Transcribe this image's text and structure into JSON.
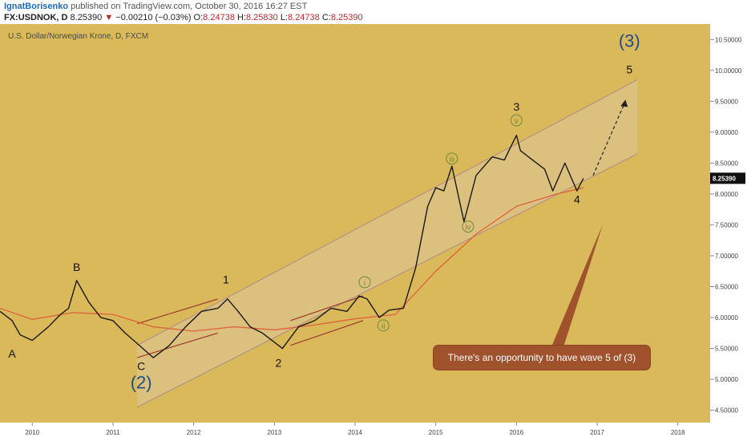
{
  "header": {
    "author": "IgnatBorisenko",
    "published": "published on TradingView.com, October 30, 2016 16:27 EST",
    "symbol": "FX:USDNOK, D",
    "last": "8.25390",
    "change": "−0.00210 (−0.03%)",
    "open_label": "O:",
    "open": "8.24738",
    "high_label": "H:",
    "high": "8.25830",
    "low_label": "L:",
    "low": "8.24738",
    "close_label": "C:",
    "close": "8.25390"
  },
  "colors": {
    "background": "#d9b95a",
    "price_line": "#1a1a1a",
    "moving_average": "#e0623a",
    "channel": "#b08a8a",
    "channel_fill": "#ddc99a",
    "wave_label": "#111111",
    "big_wave_label": "#1d4e89",
    "minor_wave_label": "#6e8b3d",
    "callout": "#a0522d",
    "current_price_tag": "#111111"
  },
  "callout_text": "There's an opportunity to have wave 5 of (3)",
  "chart_data": {
    "type": "line",
    "title": "U.S. Dollar/Norwegian Krone, D, FXCM",
    "xlabel": "",
    "ylabel": "",
    "x_ticks": [
      "2010",
      "2011",
      "2012",
      "2013",
      "2014",
      "2015",
      "2016",
      "2017",
      "2018"
    ],
    "y_ticks": [
      "4.50000",
      "5.00000",
      "5.50000",
      "6.00000",
      "6.50000",
      "7.00000",
      "7.50000",
      "8.00000",
      "8.50000",
      "9.00000",
      "9.50000",
      "10.00000",
      "10.50000"
    ],
    "xlim": [
      2009.6,
      2018.4
    ],
    "ylim": [
      4.3,
      10.75
    ],
    "grid": false,
    "current_price": "8.25390",
    "series": [
      {
        "type": "price",
        "x": [
          2009.6,
          2009.75,
          2009.85,
          2010.0,
          2010.2,
          2010.35,
          2010.45,
          2010.55,
          2010.7,
          2010.85,
          2011.0,
          2011.15,
          2011.3,
          2011.5,
          2011.7,
          2011.9,
          2012.1,
          2012.3,
          2012.42,
          2012.55,
          2012.7,
          2012.85,
          2013.0,
          2013.1,
          2013.3,
          2013.5,
          2013.7,
          2013.9,
          2014.05,
          2014.15,
          2014.3,
          2014.42,
          2014.6,
          2014.75,
          2014.9,
          2015.0,
          2015.1,
          2015.2,
          2015.35,
          2015.5,
          2015.7,
          2015.85,
          2016.0,
          2016.05,
          2016.2,
          2016.35,
          2016.45,
          2016.6,
          2016.75,
          2016.83
        ],
        "y": [
          6.1,
          5.95,
          5.72,
          5.63,
          5.85,
          6.05,
          6.15,
          6.6,
          6.25,
          6.0,
          5.95,
          5.75,
          5.58,
          5.35,
          5.55,
          5.85,
          6.1,
          6.15,
          6.3,
          6.1,
          5.85,
          5.75,
          5.6,
          5.5,
          5.85,
          5.95,
          6.15,
          6.1,
          6.35,
          6.3,
          6.0,
          6.12,
          6.15,
          6.8,
          7.8,
          8.1,
          8.05,
          8.45,
          7.55,
          8.3,
          8.6,
          8.55,
          8.95,
          8.7,
          8.55,
          8.4,
          8.05,
          8.5,
          8.05,
          8.254
        ]
      },
      {
        "type": "moving_average",
        "x": [
          2009.6,
          2010.0,
          2010.5,
          2011.0,
          2011.5,
          2012.0,
          2012.5,
          2013.0,
          2013.5,
          2014.0,
          2014.5,
          2015.0,
          2015.5,
          2016.0,
          2016.5,
          2016.83
        ],
        "y": [
          6.15,
          5.97,
          6.08,
          6.05,
          5.85,
          5.78,
          5.85,
          5.8,
          5.88,
          5.98,
          6.05,
          6.75,
          7.35,
          7.8,
          8.0,
          8.1
        ]
      }
    ],
    "channel": {
      "upper": [
        [
          2011.3,
          5.55
        ],
        [
          2017.5,
          9.85
        ]
      ],
      "lower": [
        [
          2011.3,
          4.55
        ],
        [
          2017.5,
          8.65
        ]
      ],
      "inner_upper": [
        [
          2011.3,
          5.35
        ],
        [
          2016.9,
          8.6
        ]
      ]
    },
    "sub_channels": [
      {
        "upper": [
          [
            2011.3,
            5.9
          ],
          [
            2012.3,
            6.3
          ]
        ],
        "lower": [
          [
            2011.3,
            5.35
          ],
          [
            2012.3,
            5.75
          ]
        ]
      },
      {
        "upper": [
          [
            2013.2,
            5.95
          ],
          [
            2014.1,
            6.35
          ]
        ],
        "lower": [
          [
            2013.2,
            5.55
          ],
          [
            2014.1,
            5.95
          ]
        ]
      }
    ],
    "projection": [
      [
        2016.95,
        8.3
      ],
      [
        2017.35,
        9.5
      ]
    ],
    "annotations": [
      {
        "text": "A",
        "x": 2009.75,
        "y": 5.35,
        "style": "major"
      },
      {
        "text": "B",
        "x": 2010.55,
        "y": 6.75,
        "style": "major"
      },
      {
        "text": "C",
        "x": 2011.35,
        "y": 5.15,
        "style": "major"
      },
      {
        "text": "(2)",
        "x": 2011.35,
        "y": 4.85,
        "style": "big"
      },
      {
        "text": "1",
        "x": 2012.4,
        "y": 6.55,
        "style": "major"
      },
      {
        "text": "2",
        "x": 2013.05,
        "y": 5.2,
        "style": "major"
      },
      {
        "text": "i",
        "x": 2014.12,
        "y": 6.52,
        "style": "minor"
      },
      {
        "text": "ii",
        "x": 2014.35,
        "y": 5.82,
        "style": "minor"
      },
      {
        "text": "iii",
        "x": 2015.2,
        "y": 8.52,
        "style": "minor"
      },
      {
        "text": "iv",
        "x": 2015.4,
        "y": 7.42,
        "style": "minor"
      },
      {
        "text": "v",
        "x": 2016.0,
        "y": 9.14,
        "style": "minor"
      },
      {
        "text": "3",
        "x": 2016.0,
        "y": 9.35,
        "style": "major"
      },
      {
        "text": "4",
        "x": 2016.75,
        "y": 7.85,
        "style": "major"
      },
      {
        "text": "5",
        "x": 2017.4,
        "y": 9.95,
        "style": "major"
      },
      {
        "text": "(3)",
        "x": 2017.4,
        "y": 10.38,
        "style": "big"
      }
    ]
  }
}
